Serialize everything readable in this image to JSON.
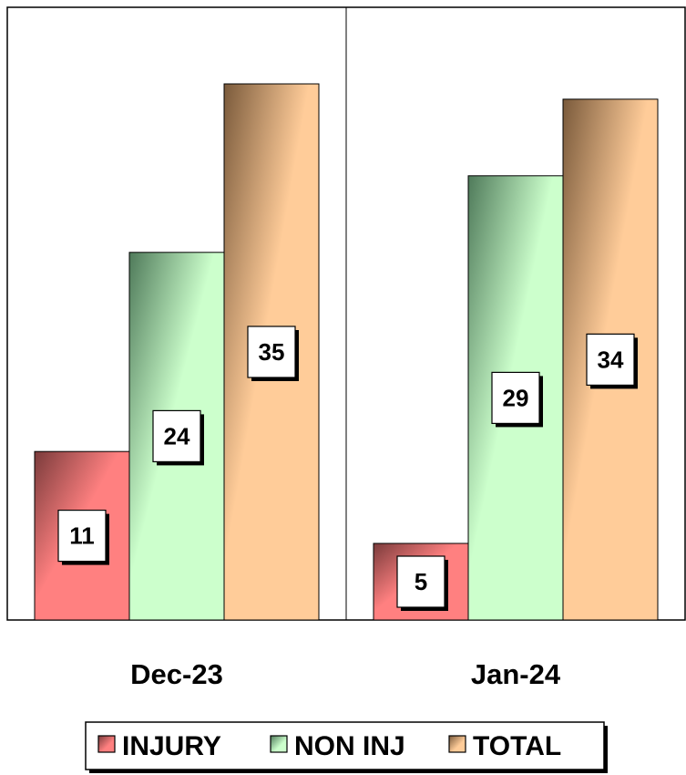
{
  "chart_data": {
    "type": "bar",
    "categories": [
      "Dec-23",
      "Jan-24"
    ],
    "series": [
      {
        "name": "INJURY",
        "values": [
          11,
          5
        ]
      },
      {
        "name": "NON INJ",
        "values": [
          24,
          29
        ]
      },
      {
        "name": "TOTAL",
        "values": [
          35,
          34
        ]
      }
    ],
    "ylim": [
      0,
      40
    ],
    "grid": false,
    "legend_position": "bottom",
    "colors": {
      "INJURY": {
        "light": "#ff8080",
        "dark": "#7a3b3b"
      },
      "NON INJ": {
        "light": "#ccffcc",
        "dark": "#4f7a5a"
      },
      "TOTAL": {
        "light": "#ffcc99",
        "dark": "#7a5a3b"
      }
    }
  }
}
